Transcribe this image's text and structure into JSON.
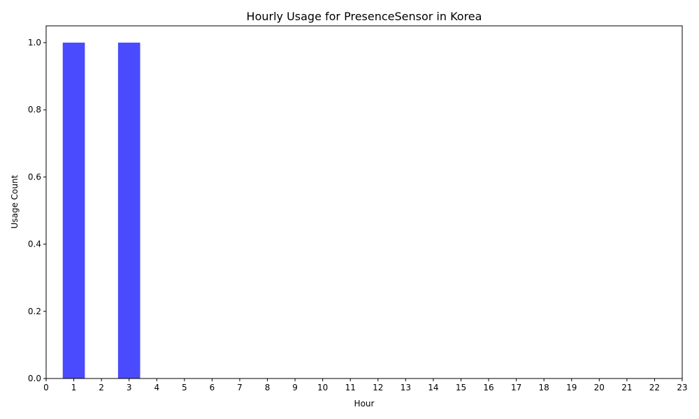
{
  "chart_data": {
    "type": "bar",
    "title": "Hourly Usage for PresenceSensor in Korea",
    "xlabel": "Hour",
    "ylabel": "Usage Count",
    "x": [
      1,
      3
    ],
    "values": [
      1.0,
      1.0
    ],
    "xlim": [
      0,
      23
    ],
    "ylim": [
      0,
      1.05
    ],
    "x_ticks": [
      "0",
      "1",
      "2",
      "3",
      "4",
      "5",
      "6",
      "7",
      "8",
      "9",
      "10",
      "11",
      "12",
      "13",
      "14",
      "15",
      "16",
      "17",
      "18",
      "19",
      "20",
      "21",
      "22",
      "23"
    ],
    "y_ticks": [
      "0.0",
      "0.2",
      "0.4",
      "0.6",
      "0.8",
      "1.0"
    ],
    "bar_color": "#4a4aff",
    "grid": false,
    "legend": "none"
  }
}
